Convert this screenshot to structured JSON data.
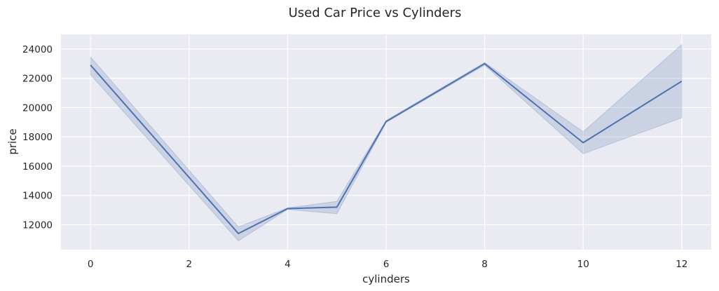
{
  "chart_data": {
    "type": "line",
    "title": "Used Car Price vs Cylinders",
    "xlabel": "cylinders",
    "ylabel": "price",
    "x_ticks": [
      0,
      2,
      4,
      6,
      8,
      10,
      12
    ],
    "y_ticks": [
      12000,
      14000,
      16000,
      18000,
      20000,
      22000,
      24000
    ],
    "xlim": [
      -0.6,
      12.6
    ],
    "ylim": [
      10300,
      25000
    ],
    "grid": true,
    "series": [
      {
        "x": [
          0,
          3,
          4,
          5,
          6,
          8,
          10,
          12
        ],
        "y": [
          22900,
          11400,
          13100,
          13200,
          19050,
          23000,
          17600,
          21800
        ],
        "ci_lower": [
          22250,
          10900,
          13050,
          12750,
          18980,
          22900,
          16850,
          19300
        ],
        "ci_upper": [
          23450,
          11850,
          13150,
          13600,
          19120,
          23080,
          18350,
          24300
        ]
      }
    ],
    "colors": {
      "line": "#4C72B0",
      "band": "#4C72B0",
      "plot_background": "#EAEAF2",
      "grid": "#FFFFFF"
    }
  }
}
